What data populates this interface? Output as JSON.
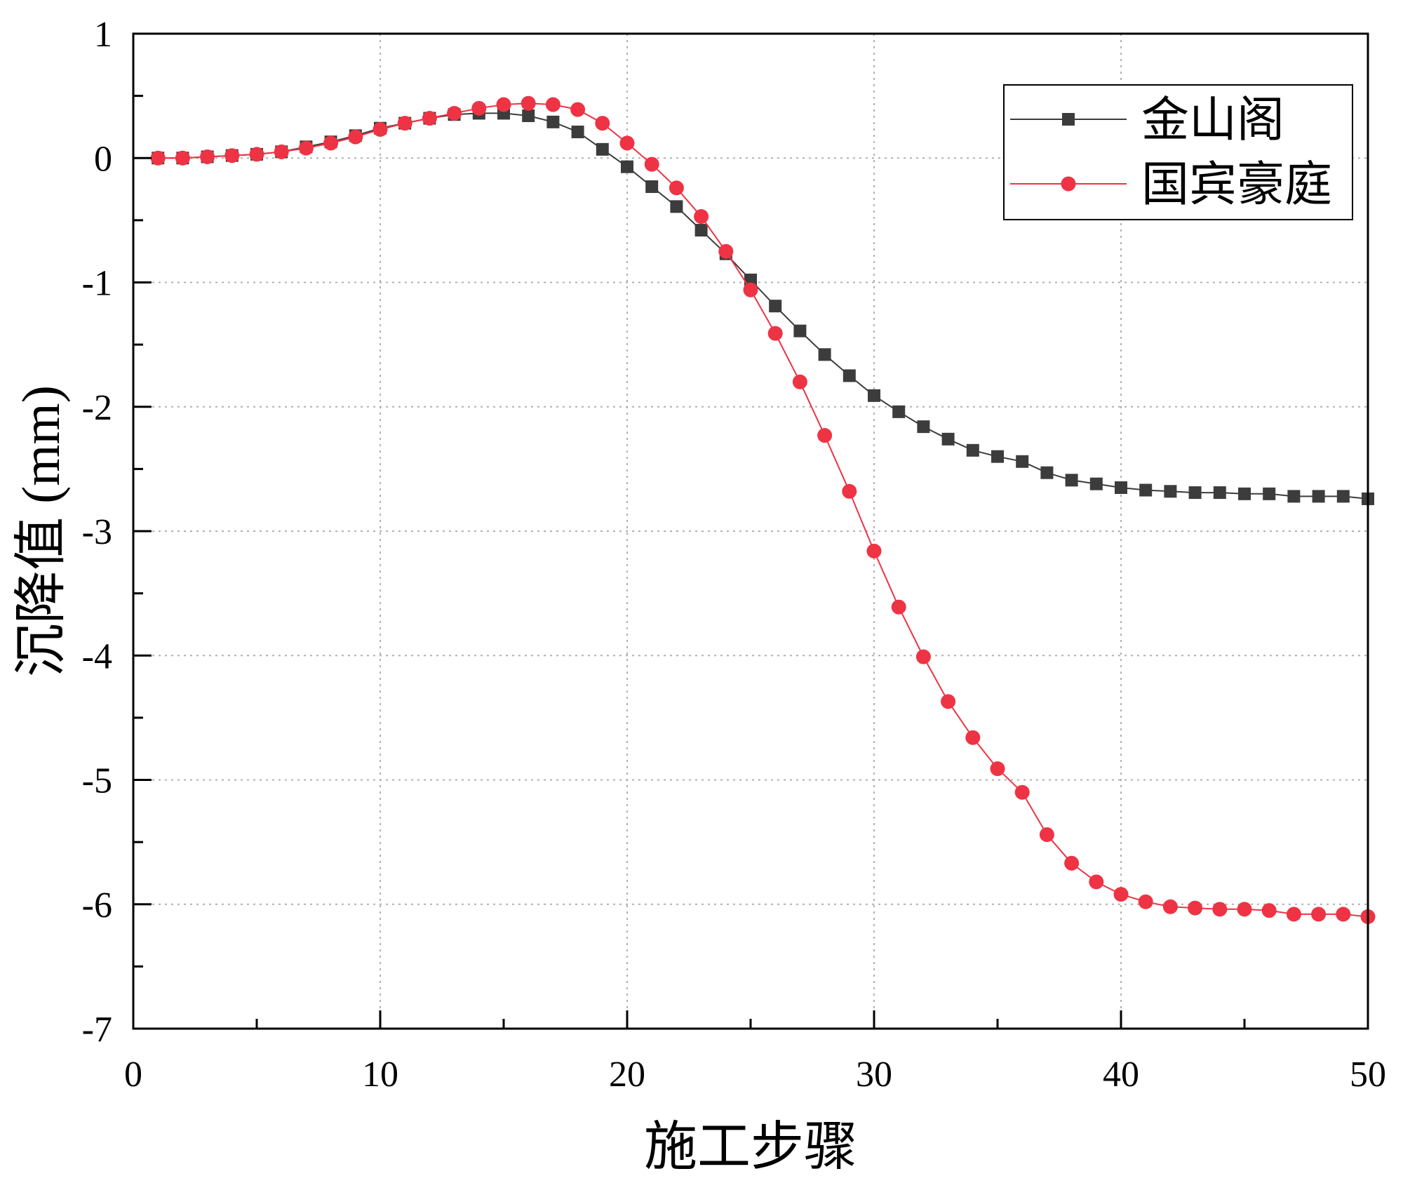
{
  "chart_data": {
    "type": "line",
    "xlabel": "施工步骤",
    "ylabel": "沉降值 (mm)",
    "xlim": [
      0,
      50
    ],
    "ylim": [
      -7,
      1
    ],
    "xticks": [
      0,
      10,
      20,
      30,
      40,
      50
    ],
    "yticks": [
      1,
      0,
      -1,
      -2,
      -3,
      -4,
      -5,
      -6,
      -7
    ],
    "x_minor_step": 5,
    "y_minor_step": 0.5,
    "grid": true,
    "legend_position": "top-right",
    "x": [
      1,
      2,
      3,
      4,
      5,
      6,
      7,
      8,
      9,
      10,
      11,
      12,
      13,
      14,
      15,
      16,
      17,
      18,
      19,
      20,
      21,
      22,
      23,
      24,
      25,
      26,
      27,
      28,
      29,
      30,
      31,
      32,
      33,
      34,
      35,
      36,
      37,
      38,
      39,
      40,
      41,
      42,
      43,
      44,
      45,
      46,
      47,
      48,
      49,
      50
    ],
    "series": [
      {
        "name": "金山阁",
        "marker": "square",
        "color": "#3c3c3c",
        "values": [
          0,
          0,
          0.01,
          0.02,
          0.03,
          0.05,
          0.09,
          0.13,
          0.18,
          0.24,
          0.28,
          0.32,
          0.35,
          0.36,
          0.36,
          0.34,
          0.29,
          0.21,
          0.07,
          -0.07,
          -0.23,
          -0.39,
          -0.58,
          -0.77,
          -0.98,
          -1.19,
          -1.39,
          -1.58,
          -1.75,
          -1.91,
          -2.04,
          -2.16,
          -2.26,
          -2.35,
          -2.4,
          -2.44,
          -2.53,
          -2.59,
          -2.62,
          -2.65,
          -2.67,
          -2.68,
          -2.69,
          -2.69,
          -2.7,
          -2.7,
          -2.72,
          -2.72,
          -2.72,
          -2.74
        ]
      },
      {
        "name": "国宾豪庭",
        "marker": "circle",
        "color": "#ee3344",
        "values": [
          0,
          0,
          0.01,
          0.02,
          0.03,
          0.05,
          0.08,
          0.12,
          0.17,
          0.23,
          0.28,
          0.32,
          0.36,
          0.4,
          0.43,
          0.44,
          0.43,
          0.39,
          0.28,
          0.12,
          -0.05,
          -0.24,
          -0.47,
          -0.75,
          -1.06,
          -1.41,
          -1.8,
          -2.23,
          -2.68,
          -3.16,
          -3.61,
          -4.01,
          -4.37,
          -4.66,
          -4.91,
          -5.1,
          -5.44,
          -5.67,
          -5.82,
          -5.92,
          -5.98,
          -6.02,
          -6.03,
          -6.04,
          -6.04,
          -6.05,
          -6.08,
          -6.08,
          -6.08,
          -6.1
        ]
      }
    ]
  }
}
